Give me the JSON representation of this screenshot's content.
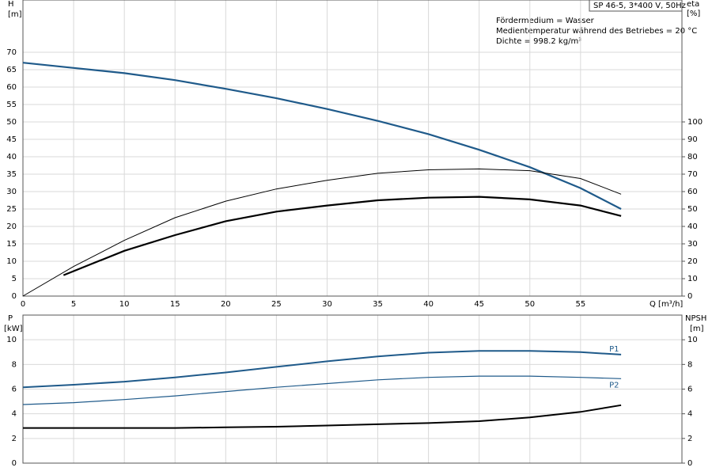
{
  "chart_data": [
    {
      "type": "line",
      "title": "SP 46-5, 3*400 V, 50Hz",
      "annotations": [
        "Fördermedium = Wasser",
        "Medientemperatur während des Betriebes = 20 °C",
        "Dichte = 998.2 kg/m³"
      ],
      "x_label": "Q [m³/h]",
      "y_label": "H",
      "y_unit": "[m]",
      "y2_label": "eta",
      "y2_unit": "[%]",
      "xlim": [
        0,
        65
      ],
      "xticks": [
        0,
        5,
        10,
        15,
        20,
        25,
        30,
        35,
        40,
        45,
        50,
        55
      ],
      "ylim": [
        0,
        85
      ],
      "yticks": [
        0,
        5,
        10,
        15,
        20,
        25,
        30,
        35,
        40,
        45,
        50,
        55,
        60,
        65,
        70
      ],
      "y2lim": [
        0,
        170
      ],
      "y2ticks": [
        0,
        10,
        20,
        30,
        40,
        50,
        60,
        70,
        80,
        90,
        100
      ],
      "grid": true,
      "series": [
        {
          "color": "#1f5a8a",
          "width": 2.2,
          "x": [
            0,
            5,
            10,
            15,
            20,
            25,
            30,
            35,
            40,
            45,
            50,
            55,
            59
          ],
          "values": [
            67,
            65.5,
            64,
            62,
            59.5,
            56.8,
            53.7,
            50.3,
            46.5,
            42,
            37,
            31,
            25
          ]
        },
        {
          "color": "#000000",
          "width": 1,
          "axis": "y2",
          "x": [
            0,
            5,
            10,
            15,
            20,
            25,
            30,
            35,
            40,
            45,
            50,
            55,
            59
          ],
          "values": [
            0,
            17,
            32,
            45,
            54.5,
            61.5,
            66.5,
            70.5,
            72.5,
            73,
            72,
            67.5,
            58.5
          ]
        },
        {
          "color": "#000000",
          "width": 2.2,
          "axis": "y2",
          "x": [
            4,
            10,
            15,
            20,
            25,
            30,
            35,
            40,
            45,
            50,
            55,
            59
          ],
          "values": [
            12,
            26,
            35,
            43,
            48.5,
            52,
            55,
            56.5,
            57,
            55.5,
            52,
            46
          ]
        }
      ]
    },
    {
      "type": "line",
      "y_label": "P",
      "y_unit": "[kW]",
      "y2_label": "NPSH",
      "y2_unit": "[m]",
      "xlim": [
        0,
        65
      ],
      "ylim": [
        0,
        12
      ],
      "yticks": [
        0,
        2,
        4,
        6,
        8,
        10
      ],
      "y2lim": [
        0,
        12
      ],
      "y2ticks": [
        0,
        2,
        4,
        6,
        8,
        10
      ],
      "grid": true,
      "series": [
        {
          "name": "P1",
          "color": "#1f5a8a",
          "width": 2,
          "x": [
            0,
            5,
            10,
            15,
            20,
            25,
            30,
            35,
            40,
            45,
            50,
            55,
            59
          ],
          "values": [
            6.15,
            6.35,
            6.6,
            6.95,
            7.35,
            7.8,
            8.25,
            8.65,
            8.95,
            9.1,
            9.1,
            9.0,
            8.8
          ]
        },
        {
          "name": "P2",
          "color": "#1f5a8a",
          "width": 1.2,
          "x": [
            0,
            5,
            10,
            15,
            20,
            25,
            30,
            35,
            40,
            45,
            50,
            55,
            59
          ],
          "values": [
            4.75,
            4.9,
            5.15,
            5.45,
            5.8,
            6.15,
            6.45,
            6.75,
            6.95,
            7.05,
            7.05,
            6.95,
            6.85
          ]
        },
        {
          "color": "#000000",
          "width": 2,
          "axis": "y2",
          "x": [
            0,
            5,
            10,
            15,
            20,
            25,
            30,
            35,
            40,
            45,
            50,
            55,
            59
          ],
          "values": [
            2.85,
            2.85,
            2.85,
            2.85,
            2.9,
            2.95,
            3.05,
            3.15,
            3.25,
            3.4,
            3.7,
            4.15,
            4.7
          ]
        }
      ]
    }
  ]
}
